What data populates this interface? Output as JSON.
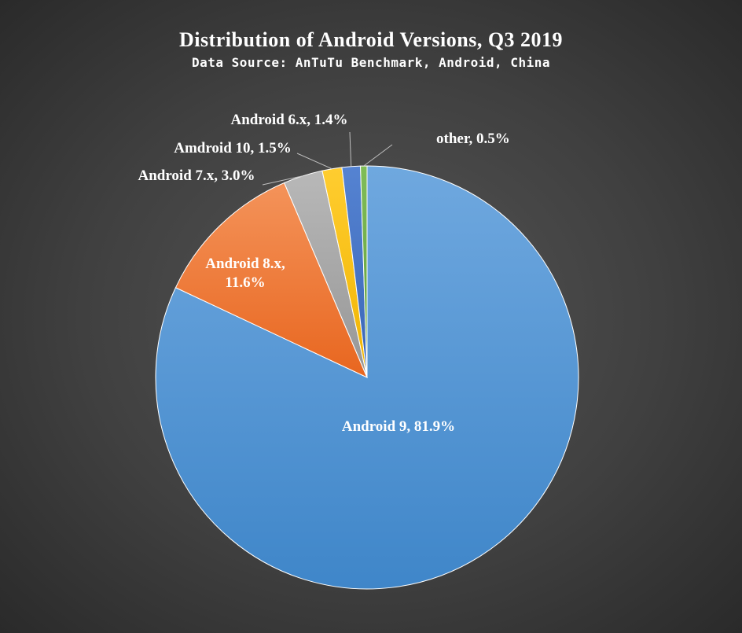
{
  "chart_data": {
    "type": "pie",
    "title": "Distribution of Android Versions, Q3 2019",
    "subtitle": "Data Source: AnTuTu Benchmark, Android, China",
    "slices": [
      {
        "label": "Android  9",
        "value": 81.9,
        "display": "81.9%",
        "color": "#5b9bd5"
      },
      {
        "label": "Android  8.x",
        "value": 11.6,
        "display": "11.6%",
        "color": "#ed7d31"
      },
      {
        "label": "Android  7.x",
        "value": 3.0,
        "display": "3.0%",
        "color": "#a5a5a5"
      },
      {
        "label": "Amdroid  10",
        "value": 1.5,
        "display": "1.5%",
        "color": "#ffc000"
      },
      {
        "label": "Android  6.x",
        "value": 1.4,
        "display": "1.4%",
        "color": "#4472c4"
      },
      {
        "label": "other",
        "value": 0.5,
        "display": "0.5%",
        "color": "#70ad47"
      }
    ]
  }
}
